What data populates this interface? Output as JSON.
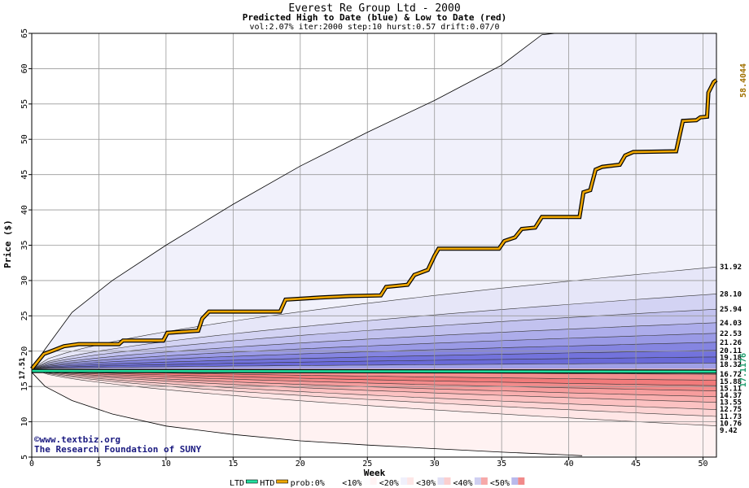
{
  "chart_data": {
    "type": "area",
    "title": "Everest Re Group Ltd - 2000",
    "subtitle": "Predicted High to Date (blue) &  Low to Date (red)",
    "params": "vol:2.07% iter:2000 step:10 hurst:0.57 drift:0.07/0",
    "xlabel": "Week",
    "ylabel": "Price ($)",
    "xlim": [
      0,
      51
    ],
    "ylim": [
      5,
      65
    ],
    "x_ticks": [
      0,
      5,
      10,
      15,
      20,
      25,
      30,
      35,
      40,
      45,
      50
    ],
    "y_ticks": [
      5,
      10,
      15,
      20,
      25,
      30,
      35,
      40,
      45,
      50,
      55,
      60,
      65
    ],
    "grid": true,
    "start_price_label": "17.51",
    "end_price_label": "17.1176",
    "actual_high_label": "58.4044",
    "right_labels": [
      "31.92",
      "28.10",
      "25.94",
      "24.03",
      "22.53",
      "21.26",
      "20.11",
      "19.18",
      "18.32",
      "16.72",
      "15.88",
      "15.11",
      "14.37",
      "13.55",
      "12.75",
      "11.73",
      "10.76",
      "9.42"
    ],
    "bands_high": {
      "end_values": [
        5.0,
        31.92,
        28.1,
        25.94,
        24.03,
        22.53,
        21.26,
        20.11,
        19.18,
        18.32,
        17.51
      ],
      "colors": [
        "#f1f1fb",
        "#e6e6f8",
        "#d3d3f3",
        "#c2c2ef",
        "#adadeb",
        "#9a9ae6",
        "#8585e1",
        "#7373dc",
        "#6a6ad8",
        "#a0a0e6"
      ]
    },
    "bands_low": {
      "end_values": [
        5.2,
        9.42,
        10.76,
        11.73,
        12.75,
        13.55,
        14.37,
        15.11,
        15.88,
        16.72,
        17.51
      ],
      "colors": [
        "#fff2f2",
        "#ffe6e6",
        "#fdd4d4",
        "#fcc2c2",
        "#f9afaf",
        "#f79d9d",
        "#f48b8b",
        "#f27b7b",
        "#f38f8f",
        "#f8bcbc"
      ]
    },
    "series": [
      {
        "name": "HTD",
        "color": "#f0a800",
        "points": [
          [
            0,
            17.5
          ],
          [
            0.9,
            19.6
          ],
          [
            1.6,
            20.1
          ],
          [
            2.4,
            20.7
          ],
          [
            3.5,
            21.0
          ],
          [
            6.5,
            21.0
          ],
          [
            6.8,
            21.5
          ],
          [
            9.8,
            21.5
          ],
          [
            10.1,
            22.6
          ],
          [
            12.4,
            22.9
          ],
          [
            12.7,
            24.6
          ],
          [
            13.2,
            25.6
          ],
          [
            18.5,
            25.6
          ],
          [
            18.9,
            27.3
          ],
          [
            21.5,
            27.6
          ],
          [
            23.7,
            27.8
          ],
          [
            26.0,
            27.9
          ],
          [
            26.4,
            29.1
          ],
          [
            28.0,
            29.4
          ],
          [
            28.5,
            30.8
          ],
          [
            29.5,
            31.5
          ],
          [
            30.0,
            33.5
          ],
          [
            30.3,
            34.5
          ],
          [
            34.8,
            34.5
          ],
          [
            35.2,
            35.6
          ],
          [
            36.0,
            36.1
          ],
          [
            36.5,
            37.3
          ],
          [
            37.5,
            37.5
          ],
          [
            38.0,
            39.0
          ],
          [
            40.8,
            39.0
          ],
          [
            41.1,
            42.5
          ],
          [
            41.6,
            42.8
          ],
          [
            42.0,
            45.7
          ],
          [
            42.5,
            46.1
          ],
          [
            43.8,
            46.4
          ],
          [
            44.2,
            47.7
          ],
          [
            44.8,
            48.2
          ],
          [
            48.0,
            48.3
          ],
          [
            48.5,
            52.6
          ],
          [
            49.5,
            52.7
          ],
          [
            49.8,
            53.1
          ],
          [
            50.3,
            53.2
          ],
          [
            50.4,
            56.6
          ],
          [
            50.8,
            58.1
          ],
          [
            51.0,
            58.4
          ]
        ]
      },
      {
        "name": "LTD",
        "color": "#22e0a0",
        "points": [
          [
            0,
            17.2
          ],
          [
            51,
            17.1
          ]
        ]
      }
    ],
    "bounds": [
      {
        "name": "upper",
        "points": [
          [
            0,
            17.5
          ],
          [
            1,
            20.3
          ],
          [
            3,
            25.5
          ],
          [
            6,
            30.0
          ],
          [
            10,
            35.0
          ],
          [
            15,
            40.8
          ],
          [
            20,
            46.2
          ],
          [
            25,
            51.0
          ],
          [
            30,
            55.5
          ],
          [
            35,
            60.5
          ],
          [
            38,
            64.8
          ],
          [
            39,
            65.0
          ]
        ]
      },
      {
        "name": "lower",
        "points": [
          [
            0,
            17.0
          ],
          [
            1,
            15.0
          ],
          [
            3,
            13.0
          ],
          [
            6,
            11.1
          ],
          [
            10,
            9.4
          ],
          [
            15,
            8.2
          ],
          [
            20,
            7.3
          ],
          [
            25,
            6.7
          ],
          [
            30,
            6.2
          ],
          [
            35,
            5.7
          ],
          [
            40,
            5.3
          ],
          [
            41,
            5.2
          ]
        ]
      }
    ],
    "legend_items": [
      "LTD",
      "HTD",
      "prob:0%",
      "<10%",
      "<20%",
      "<30%",
      "<40%",
      "<50%"
    ],
    "credits": [
      "©www.textbiz.org",
      "The Research Foundation of SUNY"
    ]
  }
}
